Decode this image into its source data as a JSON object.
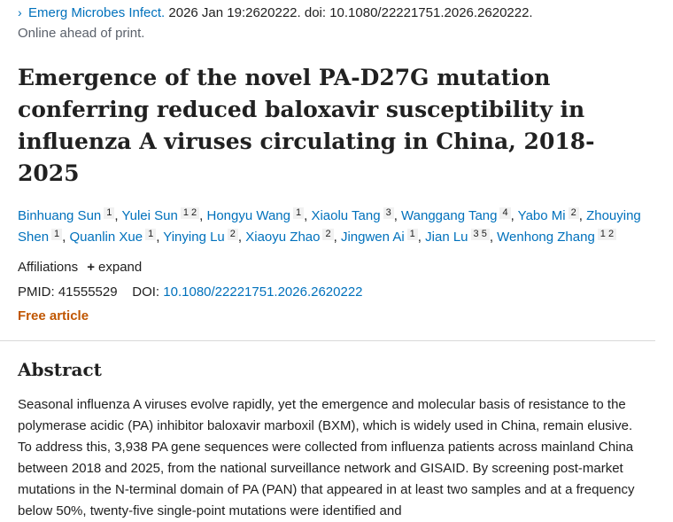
{
  "citation": {
    "journal": "Emerg Microbes Infect.",
    "details": " 2026 Jan 19:2620222. doi: 10.1080/22221751.2026.2620222.",
    "status": "Online ahead of print."
  },
  "article": {
    "title": "Emergence of the novel PA-D27G mutation conferring reduced baloxavir susceptibility in influenza A viruses circulating in China, 2018-2025"
  },
  "authors": [
    {
      "name": "Binhuang Sun",
      "affs": "1"
    },
    {
      "name": "Yulei Sun",
      "affs": "1 2"
    },
    {
      "name": "Hongyu Wang",
      "affs": "1"
    },
    {
      "name": "Xiaolu Tang",
      "affs": "3"
    },
    {
      "name": "Wanggang Tang",
      "affs": "4"
    },
    {
      "name": "Yabo Mi",
      "affs": "2"
    },
    {
      "name": "Zhouying Shen",
      "affs": "1"
    },
    {
      "name": "Quanlin Xue",
      "affs": "1"
    },
    {
      "name": "Yinying Lu",
      "affs": "2"
    },
    {
      "name": "Xiaoyu Zhao",
      "affs": "2"
    },
    {
      "name": "Jingwen Ai",
      "affs": "1"
    },
    {
      "name": "Jian Lu",
      "affs": "3 5"
    },
    {
      "name": "Wenhong Zhang",
      "affs": "1 2"
    }
  ],
  "meta": {
    "affiliations_label": "Affiliations",
    "expand_label": "expand",
    "pmid_label": "PMID:",
    "pmid_value": "41555529",
    "doi_label": "DOI:",
    "doi_value": "10.1080/22221751.2026.2620222",
    "free_label": "Free article"
  },
  "abstract": {
    "heading": "Abstract",
    "text": "Seasonal influenza A viruses evolve rapidly, yet the emergence and molecular basis of resistance to the polymerase acidic (PA) inhibitor baloxavir marboxil (BXM), which is widely used in China, remain elusive. To address this, 3,938 PA gene sequences were collected from influenza patients across mainland China between 2018 and 2025, from the national surveillance network and GISAID. By screening post-market mutations in the N-terminal domain of PA (PAN) that appeared in at least two samples and at a frequency below 50%, twenty-five single-point mutations were identified and"
  }
}
